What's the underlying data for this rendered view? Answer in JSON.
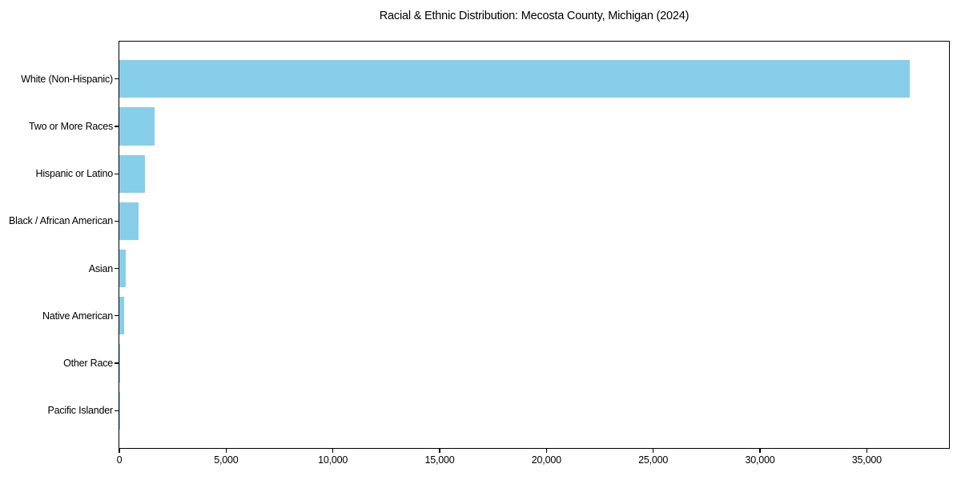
{
  "chart_data": {
    "type": "bar",
    "orientation": "horizontal",
    "title": "Racial & Ethnic Distribution: Mecosta County, Michigan (2024)",
    "categories": [
      "White (Non-Hispanic)",
      "Two or More Races",
      "Hispanic or Latino",
      "Black / African American",
      "Asian",
      "Native American",
      "Other Race",
      "Pacific Islander"
    ],
    "values": [
      37000,
      1650,
      1200,
      890,
      310,
      210,
      45,
      15
    ],
    "xlabel": "",
    "ylabel": "",
    "xlim": [
      0,
      38850
    ],
    "xticks": [
      0,
      5000,
      10000,
      15000,
      20000,
      25000,
      30000,
      35000
    ],
    "xtick_labels": [
      "0",
      "5,000",
      "10,000",
      "15,000",
      "20,000",
      "25,000",
      "30,000",
      "35,000"
    ],
    "bar_color": "#87CEEB",
    "background_color": "#FFFFFF",
    "axis_color": "#000000",
    "grid": false,
    "legend": null
  }
}
